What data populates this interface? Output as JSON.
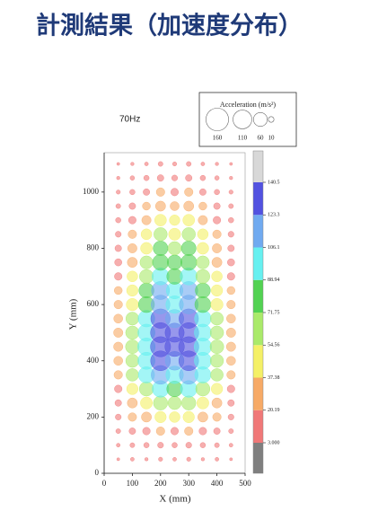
{
  "header": {
    "title": "計測結果（加速度分布）"
  },
  "chart_data": {
    "type": "bubble",
    "annotation": "70Hz",
    "xlabel": "X (mm)",
    "ylabel": "Y (mm)",
    "xlim": [
      0,
      500
    ],
    "xticks": [
      0,
      100,
      200,
      300,
      400,
      500
    ],
    "ylim": [
      0,
      1140
    ],
    "yticks": [
      0,
      200,
      400,
      600,
      800,
      1000
    ],
    "x": [
      50,
      100,
      150,
      200,
      250,
      300,
      350,
      400,
      450
    ],
    "y": [
      50,
      100,
      150,
      200,
      250,
      300,
      350,
      400,
      450,
      500,
      550,
      600,
      650,
      700,
      750,
      800,
      850,
      900,
      950,
      1000,
      1050,
      1100
    ],
    "values": [
      [
        3,
        5,
        4,
        6,
        5,
        6,
        4,
        5,
        3
      ],
      [
        5,
        8,
        10,
        12,
        10,
        12,
        10,
        8,
        5
      ],
      [
        8,
        15,
        20,
        25,
        20,
        25,
        20,
        15,
        8
      ],
      [
        12,
        25,
        35,
        45,
        40,
        45,
        35,
        25,
        12
      ],
      [
        15,
        35,
        50,
        70,
        60,
        70,
        50,
        35,
        15
      ],
      [
        20,
        45,
        70,
        95,
        85,
        95,
        70,
        45,
        20
      ],
      [
        25,
        55,
        90,
        120,
        105,
        120,
        90,
        55,
        25
      ],
      [
        28,
        60,
        100,
        135,
        120,
        135,
        100,
        60,
        28
      ],
      [
        30,
        65,
        105,
        140,
        130,
        140,
        105,
        65,
        30
      ],
      [
        30,
        62,
        100,
        138,
        125,
        138,
        100,
        62,
        30
      ],
      [
        28,
        58,
        95,
        130,
        115,
        130,
        95,
        58,
        28
      ],
      [
        25,
        52,
        88,
        122,
        105,
        122,
        88,
        52,
        25
      ],
      [
        22,
        45,
        78,
        112,
        95,
        112,
        78,
        45,
        22
      ],
      [
        20,
        40,
        68,
        100,
        85,
        100,
        68,
        40,
        20
      ],
      [
        18,
        35,
        58,
        88,
        75,
        88,
        58,
        35,
        18
      ],
      [
        15,
        30,
        48,
        75,
        62,
        75,
        48,
        30,
        15
      ],
      [
        12,
        25,
        40,
        62,
        50,
        62,
        40,
        25,
        12
      ],
      [
        10,
        20,
        30,
        48,
        38,
        48,
        30,
        20,
        10
      ],
      [
        8,
        15,
        22,
        35,
        28,
        35,
        22,
        15,
        8
      ],
      [
        6,
        10,
        15,
        25,
        20,
        25,
        15,
        10,
        6
      ],
      [
        4,
        7,
        10,
        15,
        12,
        15,
        10,
        7,
        4
      ],
      [
        3,
        4,
        5,
        8,
        6,
        8,
        5,
        4,
        3
      ]
    ],
    "colorbar": {
      "levels": [
        {
          "value": 3,
          "label": "3.000"
        },
        20.19,
        37.38,
        54.56,
        71.75,
        88.94,
        106.1,
        123.3,
        140.5
      ],
      "colors": [
        "#7f7f7f",
        "#f07878",
        "#f7aa66",
        "#f4f066",
        "#aaea6a",
        "#52d252",
        "#66f0f0",
        "#70aaf0",
        "#5252e0",
        "#d8d8d8"
      ]
    },
    "size_legend": {
      "title": "Acceleration (m/s²)",
      "sizes": [
        160,
        110,
        60,
        10
      ]
    }
  }
}
